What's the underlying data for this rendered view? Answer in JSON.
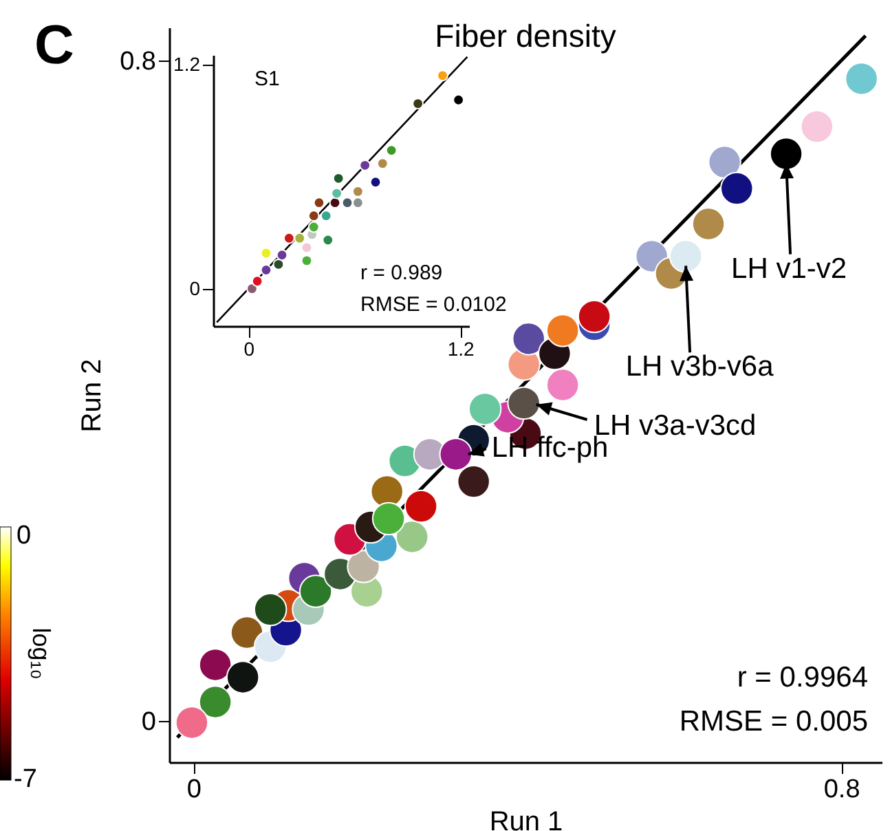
{
  "chart_data": [
    {
      "type": "scatter",
      "title": "Fiber density",
      "xlabel": "Run 1",
      "ylabel": "Run 2",
      "xlim": [
        -0.03,
        0.85
      ],
      "ylim": [
        -0.05,
        0.84
      ],
      "xticks": [
        0,
        0.8
      ],
      "yticks": [
        0,
        0.8
      ],
      "grid": false,
      "series": [
        {
          "type": "line",
          "color": "#000000",
          "x": [
            -0.02,
            0.83
          ],
          "values": [
            -0.02,
            0.83
          ]
        },
        {
          "marker": "circle",
          "x": [
            0.027,
            0.066,
            0.095,
            0.114,
            0.061,
            0.027,
            -0.002,
            0.117,
            0.095,
            0.142,
            0.137,
            0.151,
            0.214,
            0.181,
            0.21,
            0.193,
            0.232,
            0.27,
            0.219,
            0.239,
            0.281,
            0.241,
            0.261,
            0.292,
            0.346,
            0.346,
            0.324,
            0.41,
            0.388,
            0.36,
            0.408,
            0.456,
            0.408,
            0.414,
            0.446,
            0.456,
            0.495,
            0.495,
            0.566,
            0.59,
            0.608,
            0.636,
            0.656,
            0.671,
            0.732,
            0.77,
            0.825
          ],
          "values": [
            0.068,
            0.107,
            0.09,
            0.11,
            0.053,
            0.023,
            -0.002,
            0.14,
            0.135,
            0.135,
            0.173,
            0.157,
            0.157,
            0.178,
            0.187,
            0.22,
            0.212,
            0.223,
            0.235,
            0.278,
            0.26,
            0.245,
            0.315,
            0.323,
            0.29,
            0.34,
            0.323,
            0.348,
            0.368,
            0.378,
            0.385,
            0.407,
            0.432,
            0.463,
            0.445,
            0.473,
            0.48,
            0.49,
            0.563,
            0.542,
            0.563,
            0.602,
            0.677,
            0.645,
            0.687,
            0.72,
            0.778
          ],
          "colors": [
            "#8b0a50",
            "#8b5a1a",
            "#dce9f2",
            "#14148c",
            "#0f1410",
            "#3a8a2e",
            "#f06a8a",
            "#d44a10",
            "#1f4a1a",
            "#a8c8b8",
            "#6a3a9a",
            "#2a7a2a",
            "#a8d090",
            "#3a5a3a",
            "#bdb3a3",
            "#d01040",
            "#4aa8d0",
            "#98c888",
            "#2a1a14",
            "#9a6a14",
            "#cc0a0a",
            "#4ab03a",
            "#5abf90",
            "#b8a8c0",
            "#3a1a1a",
            "#0e1a30",
            "#9a1a8a",
            "#4a0a14",
            "#d040a0",
            "#6ac8a0",
            "#5a5048",
            "#f080c0",
            "#f49a80",
            "#5a4aa0",
            "#201014",
            "#f07a20",
            "#3a4ab0",
            "#c80a14",
            "#a0a8d0",
            "#b08a48",
            "#dceaf2",
            "#b08a48",
            "#a0a8d0",
            "#101080",
            "#000000",
            "#f8c8dc",
            "#70c8d0"
          ]
        }
      ],
      "annotations": [
        "C",
        {
          "text": "LH v1-v2",
          "x": 0.732,
          "y": 0.687
        },
        {
          "text": "LH v3b-v6a",
          "x": 0.608,
          "y": 0.563
        },
        {
          "text": "LH v3a-v3cd",
          "x": 0.408,
          "y": 0.385
        },
        {
          "text": "LH ffc-ph",
          "x": 0.324,
          "y": 0.323
        },
        "r = 0.9964",
        "RMSE = 0.005"
      ]
    },
    {
      "type": "scatter",
      "xlim": [
        -0.2,
        1.25
      ],
      "ylim": [
        -0.2,
        1.25
      ],
      "xticks": [
        0,
        1.2
      ],
      "yticks": [
        0,
        1.2
      ],
      "grid": false,
      "series": [
        {
          "type": "line",
          "color": "#000000",
          "x": [
            -0.18,
            1.24
          ],
          "values": [
            -0.18,
            1.24
          ]
        },
        {
          "marker": "circle",
          "x": [
            0.02,
            0.05,
            0.1,
            0.17,
            0.1,
            0.19,
            0.33,
            0.29,
            0.33,
            0.45,
            0.23,
            0.36,
            0.37,
            0.37,
            0.44,
            0.4,
            0.49,
            0.56,
            0.62,
            0.5,
            0.62,
            0.51,
            0.72,
            0.76,
            0.66,
            0.81,
            0.96,
            1.19,
            1.1
          ],
          "values": [
            0.0,
            0.04,
            0.1,
            0.13,
            0.19,
            0.18,
            0.15,
            0.27,
            0.22,
            0.26,
            0.27,
            0.29,
            0.33,
            0.39,
            0.39,
            0.46,
            0.46,
            0.46,
            0.46,
            0.51,
            0.52,
            0.59,
            0.57,
            0.67,
            0.66,
            0.74,
            0.99,
            1.01,
            1.14
          ],
          "colors": [
            "#8a5a70",
            "#e01020",
            "#6a3a9a",
            "#2a4a2a",
            "#e8f020",
            "#6a3a9a",
            "#4ab03a",
            "#a8b040",
            "#f0c8d8",
            "#2a8a4a",
            "#cc1a1a",
            "#c0c8c0",
            "#4ab03a",
            "#8a3a14",
            "#3aa890",
            "#8a3a14",
            "#4a0a14",
            "#4a5a68",
            "#8a9090",
            "#5abfa0",
            "#b08a48",
            "#1f5a2a",
            "#101080",
            "#b08a48",
            "#6a3a9a",
            "#3a9a2a",
            "#3a3a14",
            "#000000",
            "#f8a010"
          ]
        }
      ],
      "annotations": [
        "S1",
        "r = 0.989",
        "RMSE = 0.0102"
      ]
    },
    {
      "type": "other",
      "clabel": "log₁₀",
      "annotations": [
        "0",
        "-7"
      ]
    }
  ]
}
